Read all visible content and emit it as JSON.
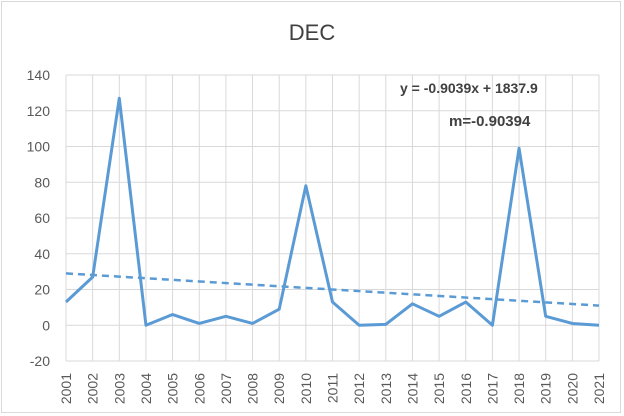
{
  "chart_data": {
    "type": "line",
    "title": "DEC",
    "xlabel": "",
    "ylabel": "",
    "ylim": [
      -20,
      140
    ],
    "yticks": [
      -20,
      0,
      20,
      40,
      60,
      80,
      100,
      120,
      140
    ],
    "grid": true,
    "categories": [
      "2001",
      "2002",
      "2003",
      "2004",
      "2005",
      "2006",
      "2007",
      "2008",
      "2009",
      "2010",
      "2011",
      "2012",
      "2013",
      "2014",
      "2015",
      "2016",
      "2017",
      "2018",
      "2019",
      "2020",
      "2021"
    ],
    "series": [
      {
        "values": [
          13,
          27,
          127,
          0,
          6,
          1,
          5,
          1,
          9,
          78,
          13,
          0,
          0.5,
          12,
          5,
          13,
          0,
          99,
          5,
          1,
          0
        ],
        "color": "#5b9bd5",
        "style": "solid"
      }
    ],
    "trendline": {
      "equation": "y = -0.9039x + 1837.9",
      "slope_label": "m=-0.90394",
      "start": 29,
      "end": 11,
      "color": "#5b9bd5",
      "style": "dashed"
    }
  }
}
